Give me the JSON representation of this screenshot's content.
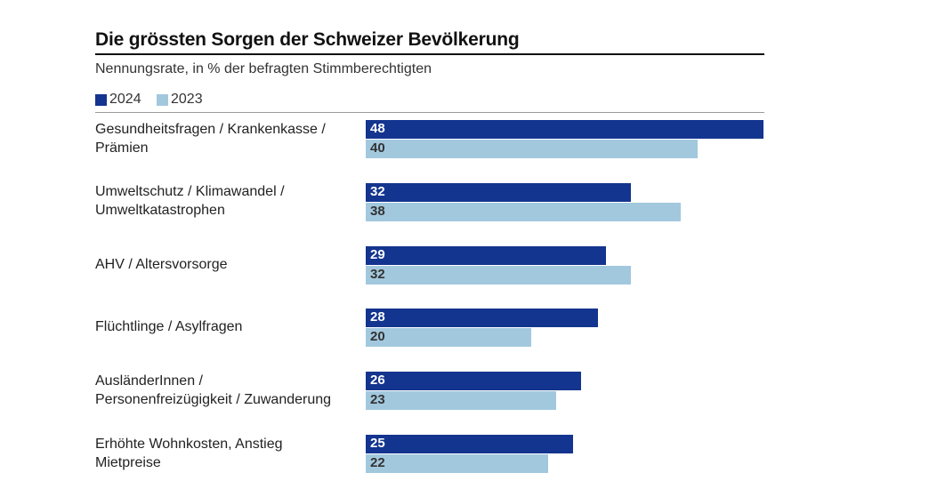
{
  "chart_data": {
    "type": "bar",
    "orientation": "horizontal",
    "title": "Die grössten Sorgen der Schweizer Bevölkerung",
    "subtitle": "Nennungsrate, in % der befragten Stimmberechtigten",
    "xlabel": "",
    "ylabel": "",
    "xlim": [
      0,
      48
    ],
    "grid": false,
    "legend_position": "top-left",
    "categories": [
      [
        "Gesundheitsfragen / Krankenkasse /",
        "Prämien"
      ],
      [
        "Umweltschutz / Klimawandel /",
        "Umweltkatastrophen"
      ],
      [
        "AHV / Altersvorsorge"
      ],
      [
        "Flüchtlinge / Asylfragen"
      ],
      [
        "AusländerInnen /",
        "Personenfreizügigkeit / Zuwanderung"
      ],
      [
        "Erhöhte Wohnkosten, Anstieg",
        "Mietpreise"
      ]
    ],
    "series": [
      {
        "name": "2024",
        "color": "#14358f",
        "label_color": "#ffffff",
        "values": [
          48,
          32,
          29,
          28,
          26,
          25
        ]
      },
      {
        "name": "2023",
        "color": "#a2c8de",
        "label_color": "#333333",
        "values": [
          40,
          38,
          32,
          20,
          23,
          22
        ]
      }
    ]
  }
}
